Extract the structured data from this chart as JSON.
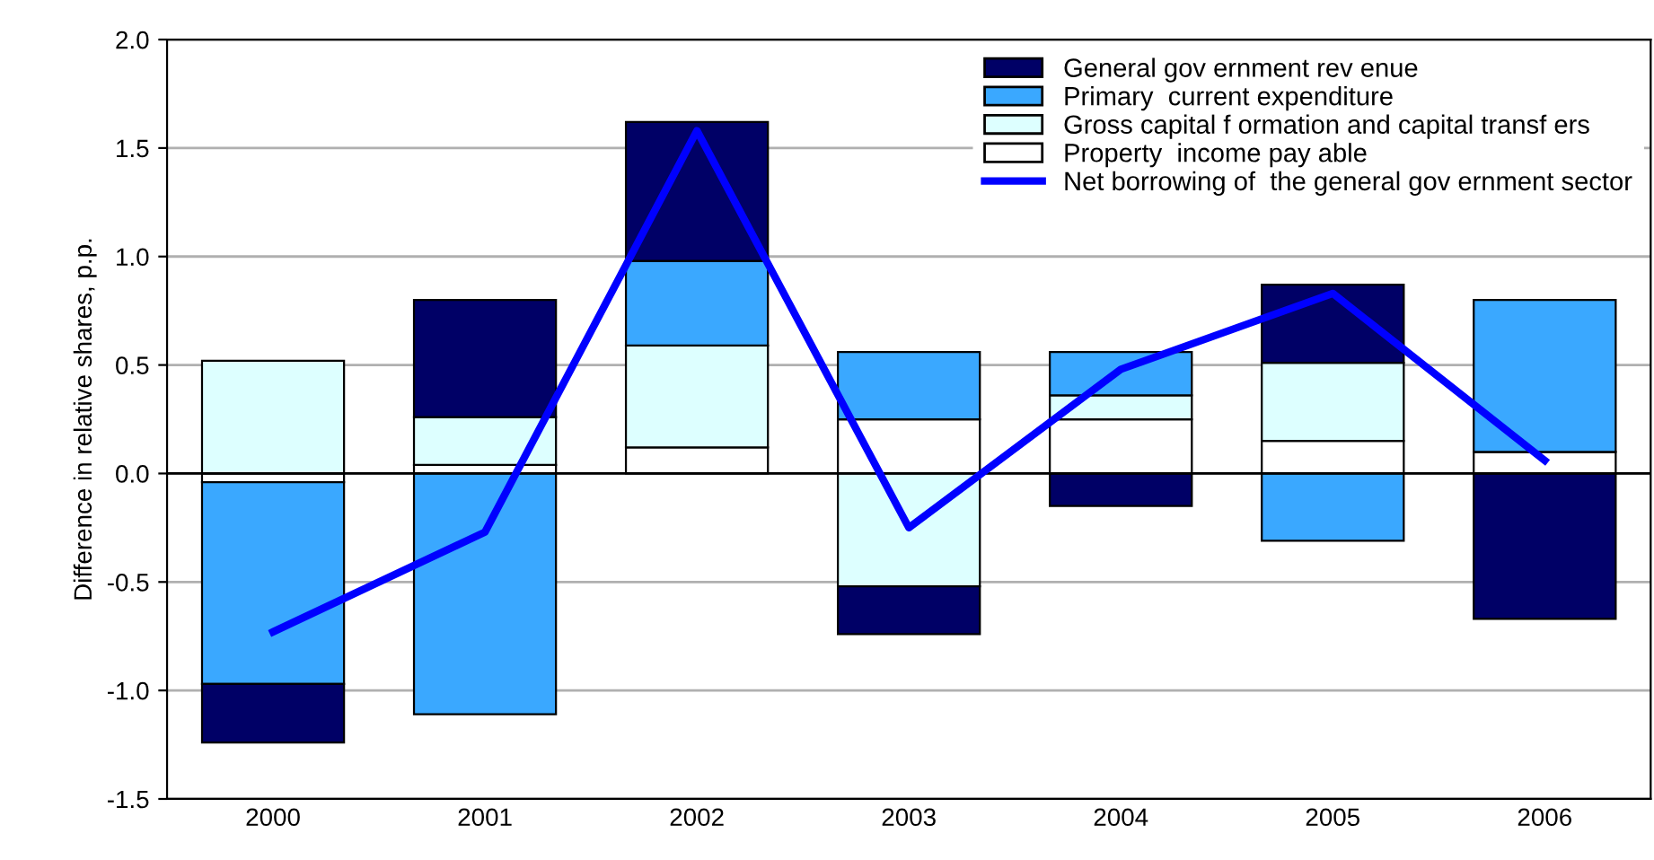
{
  "chart_data": {
    "type": "bar",
    "stacked": true,
    "ylabel": "Difference in relative shares, p.p.",
    "categories": [
      "2000",
      "2001",
      "2002",
      "2003",
      "2004",
      "2005",
      "2006"
    ],
    "series": [
      {
        "name": "Property  income pay able",
        "color": "#ffffff",
        "values": [
          -0.04,
          0.04,
          0.12,
          0.25,
          0.25,
          0.15,
          0.1
        ]
      },
      {
        "name": "Gross capital f ormation and capital transf ers",
        "color": "#ddffff",
        "values": [
          0.52,
          0.22,
          0.47,
          -0.52,
          0.11,
          0.36,
          0.0
        ]
      },
      {
        "name": "Primary  current expenditure",
        "color": "#3aa8ff",
        "values": [
          -0.93,
          -1.11,
          0.39,
          0.31,
          0.2,
          -0.31,
          0.7
        ]
      },
      {
        "name": "General gov ernment rev enue",
        "color": "#000066",
        "values": [
          -0.27,
          0.54,
          0.64,
          -0.22,
          -0.15,
          0.36,
          -0.67
        ]
      },
      {
        "name": "Net borrowing of  the general gov ernment sector",
        "type": "line",
        "color": "#0000ff",
        "values": [
          -0.73,
          -0.27,
          1.58,
          -0.25,
          0.48,
          0.83,
          0.06
        ]
      }
    ],
    "ylim": [
      -1.5,
      2.0
    ],
    "yticks": [
      {
        "value": -1.5,
        "label": "-1.5"
      },
      {
        "value": -1.0,
        "label": "-1.0"
      },
      {
        "value": -0.5,
        "label": "-0.5"
      },
      {
        "value": 0,
        "label": "0.0"
      },
      {
        "value": 0.5,
        "label": "0.5"
      },
      {
        "value": 1.0,
        "label": "1.0"
      },
      {
        "value": 1.5,
        "label": "1.5"
      },
      {
        "value": 2.0,
        "label": "2.0"
      }
    ],
    "grid": "y",
    "legend": "top right",
    "line_style": "solid",
    "marker": "none"
  }
}
